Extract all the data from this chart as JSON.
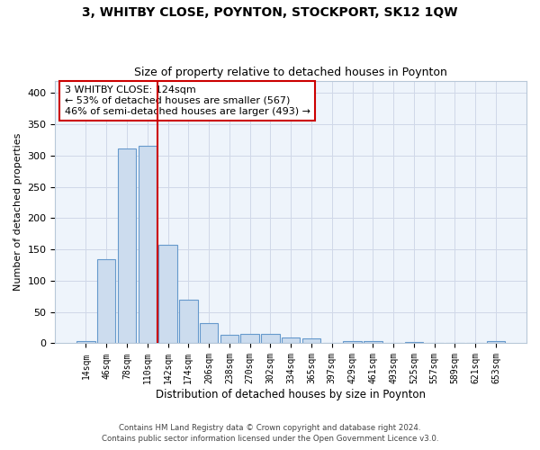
{
  "title1": "3, WHITBY CLOSE, POYNTON, STOCKPORT, SK12 1QW",
  "title2": "Size of property relative to detached houses in Poynton",
  "xlabel": "Distribution of detached houses by size in Poynton",
  "ylabel": "Number of detached properties",
  "footer1": "Contains HM Land Registry data © Crown copyright and database right 2024.",
  "footer2": "Contains public sector information licensed under the Open Government Licence v3.0.",
  "annotation_line1": "3 WHITBY CLOSE: 124sqm",
  "annotation_line2": "← 53% of detached houses are smaller (567)",
  "annotation_line3": "46% of semi-detached houses are larger (493) →",
  "bar_labels": [
    "14sqm",
    "46sqm",
    "78sqm",
    "110sqm",
    "142sqm",
    "174sqm",
    "206sqm",
    "238sqm",
    "270sqm",
    "302sqm",
    "334sqm",
    "365sqm",
    "397sqm",
    "429sqm",
    "461sqm",
    "493sqm",
    "525sqm",
    "557sqm",
    "589sqm",
    "621sqm",
    "653sqm"
  ],
  "bar_values": [
    4,
    135,
    312,
    316,
    158,
    70,
    32,
    13,
    15,
    15,
    10,
    8,
    0,
    4,
    3,
    0,
    2,
    0,
    0,
    0,
    3
  ],
  "bar_color": "#ccdcee",
  "bar_edge_color": "#6699cc",
  "vline_x": 3.5,
  "vline_color": "#cc0000",
  "annotation_box_color": "#cc0000",
  "ylim": [
    0,
    420
  ],
  "yticks": [
    0,
    50,
    100,
    150,
    200,
    250,
    300,
    350,
    400
  ],
  "grid_color": "#d0d8e8",
  "bg_color": "#ffffff",
  "plot_bg_color": "#eef4fb"
}
